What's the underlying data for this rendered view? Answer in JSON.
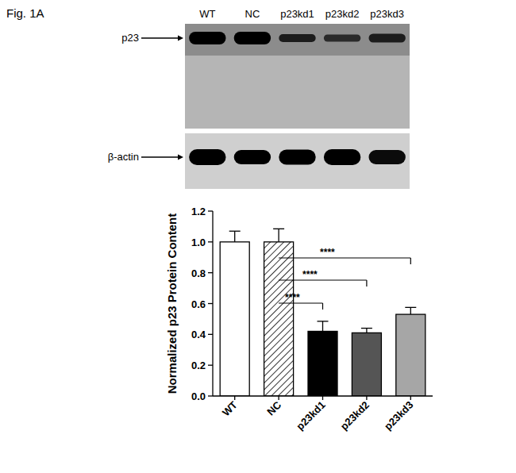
{
  "figure_label": "Fig. 1A",
  "blot": {
    "lanes": [
      "WT",
      "NC",
      "p23kd1",
      "p23kd2",
      "p23kd3"
    ],
    "rows": [
      "p23",
      "β-actin"
    ]
  },
  "chart_data": {
    "type": "bar",
    "y_label": "Normalized p23 Protein Content",
    "categories": [
      "WT",
      "NC",
      "p23kd1",
      "p23kd2",
      "p23kd3"
    ],
    "values": [
      1.0,
      1.0,
      0.42,
      0.41,
      0.53
    ],
    "errors": [
      0.07,
      0.085,
      0.065,
      0.03,
      0.045
    ],
    "colors": [
      "#ffffff",
      "#ffffff",
      "#000000",
      "#555555",
      "#a6a6a6"
    ],
    "ylim": [
      0,
      1.2
    ],
    "yticks": [
      {
        "value": 0,
        "label": "0.0"
      },
      {
        "value": 0.2,
        "label": "0.2"
      },
      {
        "value": 0.4,
        "label": "0.4"
      },
      {
        "value": 0.6,
        "label": "0.6"
      },
      {
        "value": 0.8,
        "label": "0.8"
      },
      {
        "value": 1.0,
        "label": "1.0"
      },
      {
        "value": 1.2,
        "label": "1.2"
      }
    ],
    "comparisons": [
      {
        "from": "NC",
        "to": "p23kd1",
        "label": "****"
      },
      {
        "from": "NC",
        "to": "p23kd2",
        "label": "****"
      },
      {
        "from": "NC",
        "to": "p23kd3",
        "label": "****"
      }
    ],
    "grid": false
  }
}
